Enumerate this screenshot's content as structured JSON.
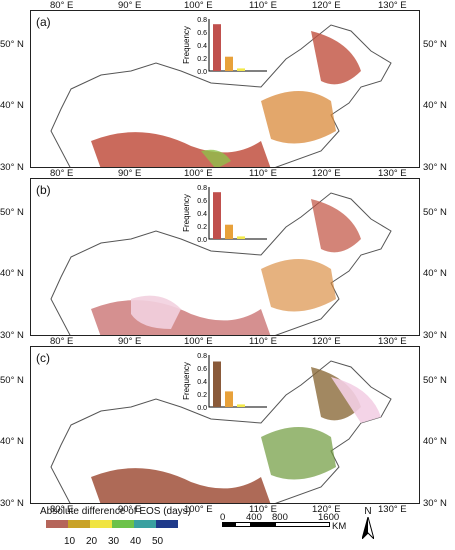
{
  "panels": [
    {
      "label": "(a)",
      "bars": [
        0.72,
        0.22,
        0.04
      ],
      "bar_colors": [
        "#c0504d",
        "#e8a13a",
        "#f2e84b"
      ]
    },
    {
      "label": "(b)",
      "bars": [
        0.72,
        0.22,
        0.04
      ],
      "bar_colors": [
        "#c0504d",
        "#e8a13a",
        "#f2e84b"
      ]
    },
    {
      "label": "(c)",
      "bars": [
        0.7,
        0.24,
        0.04
      ],
      "bar_colors": [
        "#8a5a3a",
        "#e8a13a",
        "#f2e84b"
      ]
    }
  ],
  "inset": {
    "ylabel": "Frequency",
    "yticks": [
      "0.8",
      "0.6",
      "0.4",
      "0.2",
      "0.0"
    ]
  },
  "lon_ticks": [
    "80° E",
    "90° E",
    "100° E",
    "110° E",
    "120° E",
    "130° E"
  ],
  "lat_ticks": [
    "50° N",
    "40° N",
    "30° N"
  ],
  "legend": {
    "title": "Absolute difference of EOS (days)",
    "colors": [
      "#b5655a",
      "#c9a227",
      "#f0e442",
      "#6cc24a",
      "#3aa0a0",
      "#1f3a8a"
    ],
    "ticks": [
      "10",
      "20",
      "30",
      "40",
      "50"
    ]
  },
  "scale": {
    "labels": [
      "0",
      "400",
      "800",
      "1600"
    ],
    "unit": "KM"
  },
  "north": "N"
}
